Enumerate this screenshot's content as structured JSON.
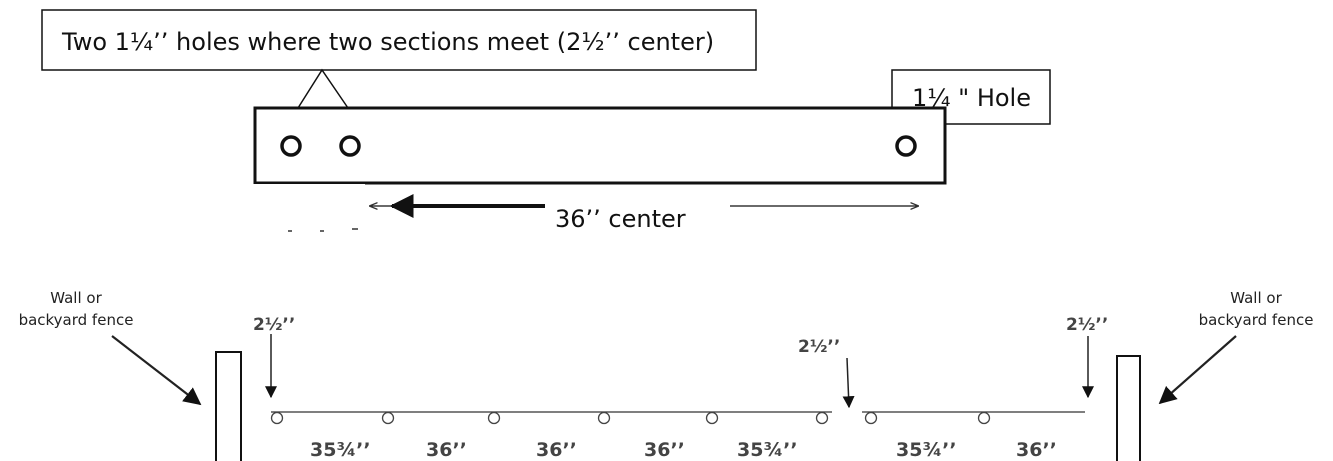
{
  "top": {
    "callout_left": "Two 1¼’’ holes where two sections meet (2½’’ center)",
    "callout_right": "1¼ \" Hole",
    "center_label": "36’’ center"
  },
  "bottom": {
    "wall_left": [
      "Wall or",
      "backyard fence"
    ],
    "wall_right": [
      "Wall or",
      "backyard fence"
    ],
    "offset_labels": [
      "2½’’",
      "2½’’",
      "2½’’"
    ],
    "spans": [
      "35¾’’",
      "36’’",
      "36’’",
      "36’’",
      "35¾’’",
      "35¾’’",
      "36’’"
    ]
  }
}
